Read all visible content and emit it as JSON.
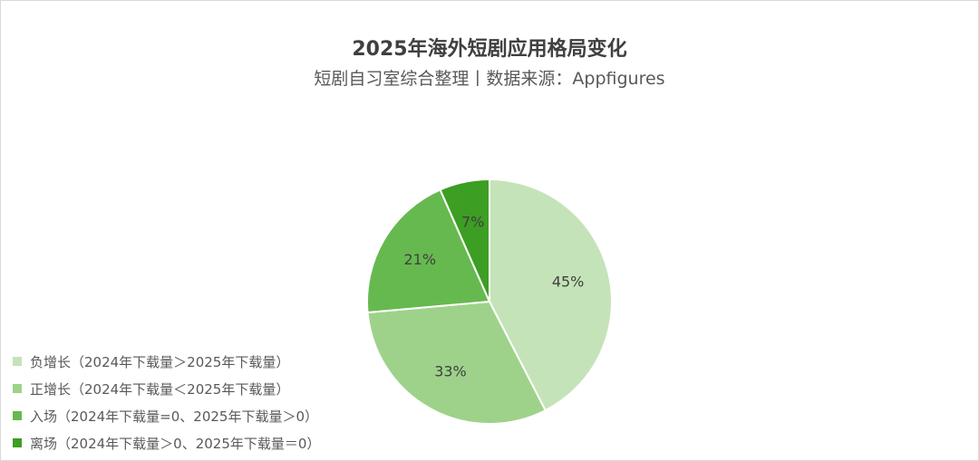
{
  "chart_data": {
    "type": "pie",
    "title": "2025年海外短剧应用格局变化",
    "subtitle": "短剧自习室综合整理丨数据来源：Appfigures",
    "slices": [
      {
        "label": "负增长（2024年下载量＞2025年下载量）",
        "value": 45,
        "value_label": "45%",
        "color": "#c5e3b8"
      },
      {
        "label": "正增长（2024年下载量＜2025年下载量）",
        "value": 33,
        "value_label": "33%",
        "color": "#9ed28a"
      },
      {
        "label": "入场（2024年下载量=0、2025年下载量＞0）",
        "value": 21,
        "value_label": "21%",
        "color": "#66b94f"
      },
      {
        "label": "离场（2024年下载量＞0、2025年下载量＝0）",
        "value": 7,
        "value_label": "7%",
        "color": "#3c9e23"
      }
    ],
    "start_angle_deg": 0,
    "direction": "clockwise",
    "legend_position": "bottom-left"
  }
}
